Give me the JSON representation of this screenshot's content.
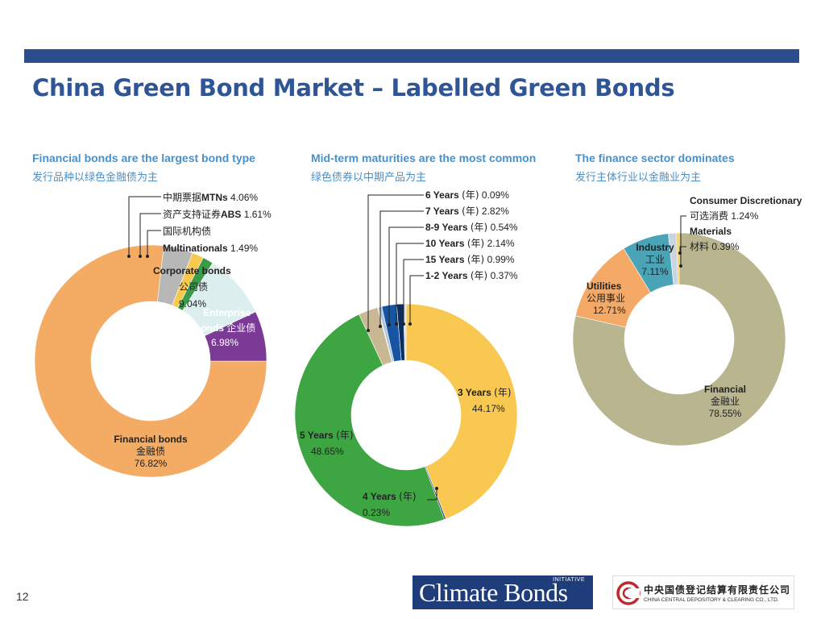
{
  "slide": {
    "title": "China Green Bond Market – Labelled Green Bonds",
    "page_number": "12"
  },
  "logos": {
    "climate_bonds": "Climate Bonds",
    "climate_bonds_initiative": "INITIATIVE",
    "ccdc_cn": "中央国债登记结算有限责任公司",
    "ccdc_en": "CHINA CENTRAL DEPOSITORY & CLEARING CO., LTD."
  },
  "colors": {
    "bar": "#2d4e8c",
    "title": "#2f5596",
    "subhead": "#4a90c8"
  },
  "chart_data": [
    {
      "type": "pie",
      "title": "Financial bonds are the largest bond type",
      "subtitle": "发行品种以绿色金融债为主",
      "unit": "%",
      "slices": [
        {
          "en": "Financial bonds",
          "cn": "金融债",
          "value": 76.82,
          "value_label": "76.82%",
          "color": "#f4ab63"
        },
        {
          "en": "MTNs",
          "cn": "中期票据",
          "value": 4.06,
          "value_label": "4.06%",
          "color": "#b7b7b7"
        },
        {
          "en": "ABS",
          "cn": "资产支持证券",
          "value": 1.61,
          "value_label": "1.61%",
          "color": "#f9c84e"
        },
        {
          "en": "Multinationals",
          "cn": "国际机构债",
          "value": 1.49,
          "value_label": "1.49%",
          "color": "#3a9b48"
        },
        {
          "en": "Corporate bonds",
          "cn": "公司债",
          "value": 9.04,
          "value_label": "9.04%",
          "color": "#dcefee"
        },
        {
          "en": "Enterprise",
          "en2": "bonds",
          "cn": "企业债",
          "value": 6.98,
          "value_label": "6.98%",
          "color": "#7b3a96"
        }
      ]
    },
    {
      "type": "pie",
      "title": "Mid-term maturities are the most common",
      "subtitle": "绿色债券以中期产品为主",
      "unit": "%",
      "year_cn": "(年)",
      "slices": [
        {
          "en": "3 Years",
          "value": 44.17,
          "value_label": "44.17%",
          "color": "#f8c851"
        },
        {
          "en": "4 Years",
          "value": 0.23,
          "value_label": "0.23%",
          "color": "#1f3d7a"
        },
        {
          "en": "5 Years",
          "value": 48.65,
          "value_label": "48.65%",
          "color": "#3da542"
        },
        {
          "en": "7 Years",
          "value": 2.82,
          "value_label": "2.82%",
          "color": "#c8b994"
        },
        {
          "en": "6 Years",
          "value": 0.09,
          "value_label": "0.09%",
          "color": "#8fc06a"
        },
        {
          "en": "8-9 Years",
          "value": 0.54,
          "value_label": "0.54%",
          "color": "#a9c8e0"
        },
        {
          "en": "10 Years",
          "value": 2.14,
          "value_label": "2.14%",
          "color": "#1755a3"
        },
        {
          "en": "15 Years",
          "value": 0.99,
          "value_label": "0.99%",
          "color": "#0d2d5e"
        },
        {
          "en": "1-2 Years",
          "value": 0.37,
          "value_label": "0.37%",
          "color": "#d6dce8"
        }
      ]
    },
    {
      "type": "pie",
      "title": "The finance sector dominates",
      "subtitle": "发行主体行业以金融业为主",
      "unit": "%",
      "slices": [
        {
          "en": "Financial",
          "cn": "金融业",
          "value": 78.55,
          "value_label": "78.55%",
          "color": "#b8b58f"
        },
        {
          "en": "Utilities",
          "cn": "公用事业",
          "value": 12.71,
          "value_label": "12.71%",
          "color": "#f4a967"
        },
        {
          "en": "Industry",
          "cn": "工业",
          "value": 7.11,
          "value_label": "7.11%",
          "color": "#4aa4b7"
        },
        {
          "en": "Consumer Discretionary",
          "cn": "可选消费",
          "value": 1.24,
          "value_label": "1.24%",
          "color": "#c9d5e3"
        },
        {
          "en": "Materials",
          "cn": "材料",
          "value": 0.39,
          "value_label": "0.39%",
          "color": "#f5d04b"
        }
      ]
    }
  ]
}
